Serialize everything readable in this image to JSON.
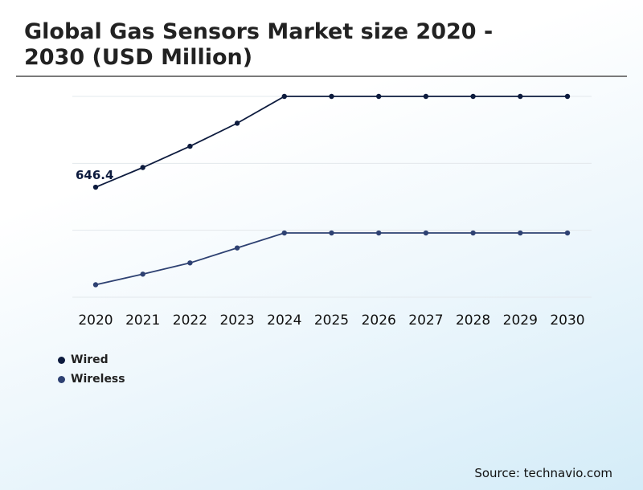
{
  "header": {
    "title": "Global Gas Sensors Market size 2020 - 2030 (USD Million)"
  },
  "footer": {
    "source": "Source: technavio.com"
  },
  "colors": {
    "wired": "#0d1b3e",
    "wireless": "#2e4172",
    "grid": "#e3e8ec",
    "divider": "#7a7a7a"
  },
  "chart_data": {
    "type": "line",
    "title": "Global Gas Sensors Market size 2020 - 2030 (USD Million)",
    "x": [
      "2020",
      "2021",
      "2022",
      "2023",
      "2024",
      "2025",
      "2026",
      "2027",
      "2028",
      "2029",
      "2030"
    ],
    "series": [
      {
        "name": "Wired",
        "values": [
          646.4,
          678,
          712,
          749,
          792,
          792,
          792,
          792,
          792,
          792,
          792
        ],
        "data_labels": {
          "0": "646.4"
        }
      },
      {
        "name": "Wireless",
        "values": [
          490,
          507,
          525,
          549,
          573,
          573,
          573,
          573,
          573,
          573,
          573
        ]
      }
    ],
    "ylim": [
      470,
      792
    ],
    "y_axis_labels_shown": false,
    "grid": true,
    "legend": "bottom-left"
  }
}
